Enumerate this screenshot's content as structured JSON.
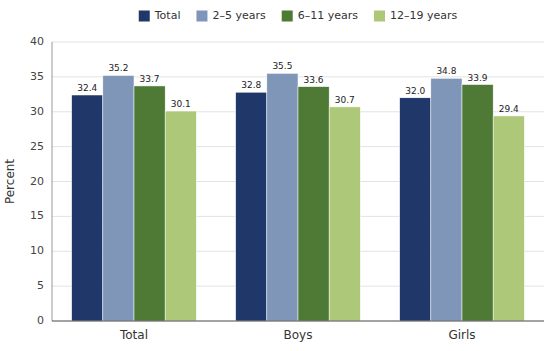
{
  "chart_data": {
    "type": "bar",
    "categories": [
      "Total",
      "Boys",
      "Girls"
    ],
    "series": [
      {
        "name": "Total",
        "color": "#1f3869",
        "values": [
          32.4,
          32.8,
          32.0
        ],
        "value_labels": [
          "32.4",
          "32.8",
          "32.0"
        ]
      },
      {
        "name": "2–5 years",
        "color": "#7f96b8",
        "values": [
          35.2,
          35.5,
          34.8
        ]
      },
      {
        "name": "6–11 years",
        "color": "#4e7a35",
        "values": [
          33.7,
          33.6,
          33.9
        ]
      },
      {
        "name": "12–19 years",
        "color": "#adc878",
        "values": [
          30.1,
          30.7,
          29.4
        ]
      }
    ],
    "ylabel": "Percent",
    "ylim": [
      0,
      40
    ],
    "yticks": [
      0,
      5,
      10,
      15,
      20,
      25,
      30,
      35,
      40
    ],
    "grid": true,
    "legend": "top",
    "data_labels": true
  }
}
